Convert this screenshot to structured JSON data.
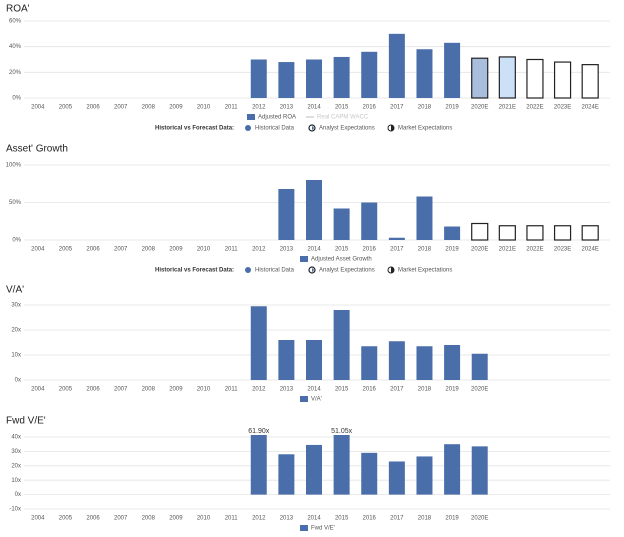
{
  "chart_data": [
    {
      "type": "bar",
      "title": "ROA'",
      "categories": [
        "2004",
        "2005",
        "2006",
        "2007",
        "2008",
        "2009",
        "2010",
        "2011",
        "2012",
        "2013",
        "2014",
        "2015",
        "2016",
        "2017",
        "2018",
        "2019",
        "2020E",
        "2021E",
        "2022E",
        "2023E",
        "2024E"
      ],
      "values": [
        null,
        null,
        null,
        null,
        null,
        null,
        null,
        null,
        30,
        28,
        30,
        32,
        36,
        50,
        38,
        43,
        31,
        32,
        30,
        28,
        26
      ],
      "colors": [
        "#4a6ea9",
        "#4a6ea9",
        "#4a6ea9",
        "#4a6ea9",
        "#4a6ea9",
        "#4a6ea9",
        "#4a6ea9",
        "#4a6ea9",
        "#4a6ea9",
        "#4a6ea9",
        "#4a6ea9",
        "#4a6ea9",
        "#4a6ea9",
        "#4a6ea9",
        "#4a6ea9",
        "#4a6ea9",
        "#a9bedc",
        "#cce1f7",
        "#ffffff",
        "#ffffff",
        "#ffffff"
      ],
      "edgecolors": [
        "#4a6ea9",
        "#4a6ea9",
        "#4a6ea9",
        "#4a6ea9",
        "#4a6ea9",
        "#4a6ea9",
        "#4a6ea9",
        "#4a6ea9",
        "#4a6ea9",
        "#4a6ea9",
        "#4a6ea9",
        "#4a6ea9",
        "#4a6ea9",
        "#4a6ea9",
        "#4a6ea9",
        "#4a6ea9",
        "#222222",
        "#222222",
        "#222222",
        "#222222",
        "#222222"
      ],
      "ylim": [
        0,
        60
      ],
      "yticks": [
        {
          "value": 0,
          "label": "0%"
        },
        {
          "value": 20,
          "label": "20%"
        },
        {
          "value": 40,
          "label": "40%"
        },
        {
          "value": 60,
          "label": "60%"
        }
      ],
      "grid": true,
      "legend": [
        {
          "label": "Adjusted ROA",
          "color": "#4a6ea9",
          "marker": "square"
        },
        {
          "label": "Real CAPM WACC",
          "color": "#c8c8c8",
          "marker": "line"
        }
      ],
      "forecast_legend": {
        "title": "Historical vs Forecast Data:",
        "items": [
          "Historical Data",
          "Analyst Expectations",
          "Market Expectations"
        ]
      }
    },
    {
      "type": "bar",
      "title": "Asset' Growth",
      "categories": [
        "2004",
        "2005",
        "2006",
        "2007",
        "2008",
        "2009",
        "2010",
        "2011",
        "2012",
        "2013",
        "2014",
        "2015",
        "2016",
        "2017",
        "2018",
        "2019",
        "2020E",
        "2021E",
        "2022E",
        "2023E",
        "2024E"
      ],
      "values": [
        null,
        null,
        null,
        null,
        null,
        null,
        null,
        null,
        null,
        68,
        80,
        42,
        50,
        3,
        58,
        18,
        22,
        19,
        19,
        19,
        19
      ],
      "colors": [
        "#4a6ea9",
        "#4a6ea9",
        "#4a6ea9",
        "#4a6ea9",
        "#4a6ea9",
        "#4a6ea9",
        "#4a6ea9",
        "#4a6ea9",
        "#4a6ea9",
        "#4a6ea9",
        "#4a6ea9",
        "#4a6ea9",
        "#4a6ea9",
        "#4a6ea9",
        "#4a6ea9",
        "#4a6ea9",
        "#ffffff",
        "#ffffff",
        "#ffffff",
        "#ffffff",
        "#ffffff"
      ],
      "edgecolors": [
        "#4a6ea9",
        "#4a6ea9",
        "#4a6ea9",
        "#4a6ea9",
        "#4a6ea9",
        "#4a6ea9",
        "#4a6ea9",
        "#4a6ea9",
        "#4a6ea9",
        "#4a6ea9",
        "#4a6ea9",
        "#4a6ea9",
        "#4a6ea9",
        "#4a6ea9",
        "#4a6ea9",
        "#4a6ea9",
        "#222222",
        "#222222",
        "#222222",
        "#222222",
        "#222222"
      ],
      "ylim": [
        0,
        100
      ],
      "yticks": [
        {
          "value": 0,
          "label": "0%"
        },
        {
          "value": 50,
          "label": "50%"
        },
        {
          "value": 100,
          "label": "100%"
        }
      ],
      "grid": true,
      "legend": [
        {
          "label": "Adjusted Asset Growth",
          "color": "#4a6ea9",
          "marker": "square"
        }
      ],
      "forecast_legend": {
        "title": "Historical vs Forecast Data:",
        "items": [
          "Historical Data",
          "Analyst Expectations",
          "Market Expectations"
        ]
      }
    },
    {
      "type": "bar",
      "title": "V/A'",
      "categories": [
        "2004",
        "2005",
        "2006",
        "2007",
        "2008",
        "2009",
        "2010",
        "2011",
        "2012",
        "2013",
        "2014",
        "2015",
        "2016",
        "2017",
        "2018",
        "2019",
        "2020E"
      ],
      "values": [
        null,
        null,
        null,
        null,
        null,
        null,
        null,
        null,
        29.5,
        16,
        16,
        28,
        13.5,
        15.5,
        13.5,
        14,
        10.5
      ],
      "ylim": [
        0,
        30
      ],
      "yticks": [
        {
          "value": 0,
          "label": "0x"
        },
        {
          "value": 10,
          "label": "10x"
        },
        {
          "value": 20,
          "label": "20x"
        },
        {
          "value": 30,
          "label": "30x"
        }
      ],
      "grid": true,
      "color": "#4a6ea9",
      "legend": [
        {
          "label": "V/A'",
          "color": "#4a6ea9",
          "marker": "square"
        }
      ]
    },
    {
      "type": "bar",
      "title": "Fwd V/E'",
      "categories": [
        "2004",
        "2005",
        "2006",
        "2007",
        "2008",
        "2009",
        "2010",
        "2011",
        "2012",
        "2013",
        "2014",
        "2015",
        "2016",
        "2017",
        "2018",
        "2019",
        "2020E"
      ],
      "values": [
        null,
        null,
        null,
        null,
        null,
        null,
        null,
        null,
        61.9,
        28,
        34.5,
        51.05,
        29,
        23,
        26.5,
        35,
        33.5
      ],
      "value_labels": [
        null,
        null,
        null,
        null,
        null,
        null,
        null,
        null,
        "61.90x",
        null,
        null,
        "51.05x",
        null,
        null,
        null,
        null,
        null
      ],
      "ylim": [
        -10,
        40
      ],
      "yticks": [
        {
          "value": -10,
          "label": "-10x"
        },
        {
          "value": 0,
          "label": "0x"
        },
        {
          "value": 10,
          "label": "10x"
        },
        {
          "value": 20,
          "label": "20x"
        },
        {
          "value": 30,
          "label": "30x"
        },
        {
          "value": 40,
          "label": "40x"
        }
      ],
      "grid": true,
      "color": "#4a6ea9",
      "legend": [
        {
          "label": "Fwd V/E'",
          "color": "#4a6ea9",
          "marker": "square"
        }
      ]
    }
  ]
}
